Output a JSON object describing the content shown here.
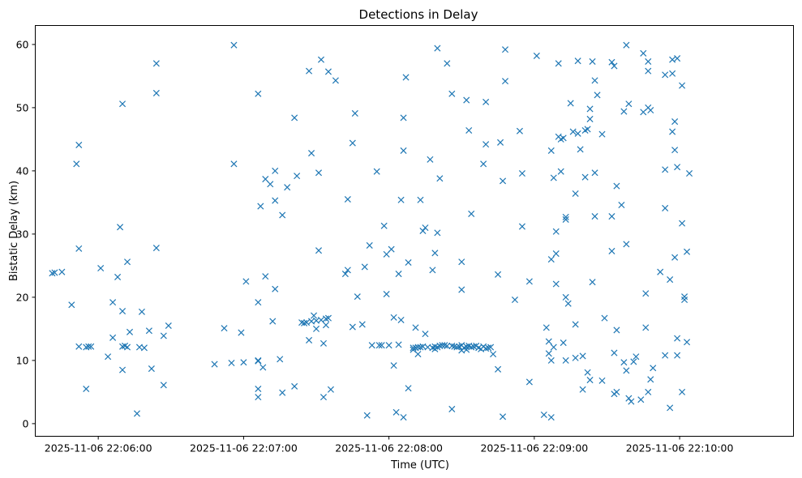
{
  "chart_data": {
    "type": "scatter",
    "title": "Detections in Delay",
    "xlabel": "Time (UTC)",
    "ylabel": "Bistatic Delay (km)",
    "marker": "x",
    "color": "#1f77b4",
    "grid": false,
    "x_unit": "time (UTC), 2025-11-06",
    "xlim": [
      "22:05:34",
      "22:10:47"
    ],
    "ylim": [
      -2,
      63
    ],
    "xticks": [
      "2025-11-06 22:06:00",
      "2025-11-06 22:07:00",
      "2025-11-06 22:08:00",
      "2025-11-06 22:09:00",
      "2025-11-06 22:10:00"
    ],
    "yticks": [
      "0",
      "10",
      "20",
      "30",
      "40",
      "50",
      "60"
    ],
    "points": [
      [
        "22:05:41",
        23.8
      ],
      [
        "22:05:42",
        23.9
      ],
      [
        "22:05:45",
        24.0
      ],
      [
        "22:05:49",
        18.8
      ],
      [
        "22:05:51",
        41.1
      ],
      [
        "22:05:52",
        44.1
      ],
      [
        "22:05:52",
        27.7
      ],
      [
        "22:05:52",
        12.2
      ],
      [
        "22:05:55",
        12.1
      ],
      [
        "22:05:55",
        5.5
      ],
      [
        "22:05:56",
        12.2
      ],
      [
        "22:05:57",
        12.2
      ],
      [
        "22:06:01",
        24.6
      ],
      [
        "22:06:04",
        10.6
      ],
      [
        "22:06:06",
        19.2
      ],
      [
        "22:06:06",
        13.6
      ],
      [
        "22:06:08",
        23.2
      ],
      [
        "22:06:09",
        31.1
      ],
      [
        "22:06:10",
        50.6
      ],
      [
        "22:06:10",
        17.8
      ],
      [
        "22:06:10",
        12.2
      ],
      [
        "22:06:10",
        8.5
      ],
      [
        "22:06:11",
        12.3
      ],
      [
        "22:06:12",
        25.6
      ],
      [
        "22:06:12",
        12.1
      ],
      [
        "22:06:13",
        14.5
      ],
      [
        "22:06:16",
        1.6
      ],
      [
        "22:06:17",
        12.1
      ],
      [
        "22:06:18",
        17.7
      ],
      [
        "22:06:19",
        12.0
      ],
      [
        "22:06:21",
        14.7
      ],
      [
        "22:06:22",
        8.7
      ],
      [
        "22:06:24",
        57.0
      ],
      [
        "22:06:24",
        52.3
      ],
      [
        "22:06:24",
        27.8
      ],
      [
        "22:06:27",
        13.9
      ],
      [
        "22:06:27",
        6.1
      ],
      [
        "22:06:29",
        15.5
      ],
      [
        "22:06:48",
        9.4
      ],
      [
        "22:06:52",
        15.1
      ],
      [
        "22:06:55",
        9.6
      ],
      [
        "22:06:56",
        59.9
      ],
      [
        "22:06:56",
        41.1
      ],
      [
        "22:06:59",
        14.4
      ],
      [
        "22:07:00",
        9.7
      ],
      [
        "22:07:01",
        22.5
      ],
      [
        "22:07:06",
        52.2
      ],
      [
        "22:07:06",
        19.2
      ],
      [
        "22:07:06",
        10.0
      ],
      [
        "22:07:06",
        9.9
      ],
      [
        "22:07:06",
        5.5
      ],
      [
        "22:07:06",
        4.2
      ],
      [
        "22:07:07",
        34.4
      ],
      [
        "22:07:08",
        8.9
      ],
      [
        "22:07:09",
        38.7
      ],
      [
        "22:07:09",
        23.3
      ],
      [
        "22:07:11",
        37.9
      ],
      [
        "22:07:12",
        16.2
      ],
      [
        "22:07:13",
        40.0
      ],
      [
        "22:07:13",
        35.3
      ],
      [
        "22:07:13",
        21.3
      ],
      [
        "22:07:15",
        10.2
      ],
      [
        "22:07:16",
        33.0
      ],
      [
        "22:07:16",
        4.9
      ],
      [
        "22:07:18",
        37.4
      ],
      [
        "22:07:21",
        48.4
      ],
      [
        "22:07:21",
        5.9
      ],
      [
        "22:07:22",
        39.2
      ],
      [
        "22:07:24",
        16.0
      ],
      [
        "22:07:25",
        15.9
      ],
      [
        "22:07:26",
        16.0
      ],
      [
        "22:07:27",
        55.8
      ],
      [
        "22:07:27",
        13.2
      ],
      [
        "22:07:28",
        42.8
      ],
      [
        "22:07:28",
        16.2
      ],
      [
        "22:07:29",
        17.1
      ],
      [
        "22:07:30",
        15.0
      ],
      [
        "22:07:30",
        16.3
      ],
      [
        "22:07:31",
        39.7
      ],
      [
        "22:07:31",
        27.4
      ],
      [
        "22:07:32",
        57.6
      ],
      [
        "22:07:32",
        16.4
      ],
      [
        "22:07:33",
        12.7
      ],
      [
        "22:07:33",
        4.2
      ],
      [
        "22:07:34",
        15.6
      ],
      [
        "22:07:34",
        16.6
      ],
      [
        "22:07:35",
        55.7
      ],
      [
        "22:07:35",
        16.7
      ],
      [
        "22:07:36",
        5.4
      ],
      [
        "22:07:38",
        54.3
      ],
      [
        "22:07:42",
        23.7
      ],
      [
        "22:07:43",
        35.5
      ],
      [
        "22:07:43",
        24.3
      ],
      [
        "22:07:45",
        44.4
      ],
      [
        "22:07:45",
        15.3
      ],
      [
        "22:07:46",
        49.1
      ],
      [
        "22:07:47",
        20.1
      ],
      [
        "22:07:49",
        15.7
      ],
      [
        "22:07:50",
        24.8
      ],
      [
        "22:07:51",
        1.3
      ],
      [
        "22:07:52",
        28.2
      ],
      [
        "22:07:53",
        12.4
      ],
      [
        "22:07:55",
        39.9
      ],
      [
        "22:07:56",
        12.4
      ],
      [
        "22:07:57",
        12.4
      ],
      [
        "22:07:58",
        31.3
      ],
      [
        "22:07:59",
        20.5
      ],
      [
        "22:07:59",
        26.8
      ],
      [
        "22:08:00",
        12.4
      ],
      [
        "22:08:01",
        27.6
      ],
      [
        "22:08:02",
        16.8
      ],
      [
        "22:08:02",
        9.2
      ],
      [
        "22:08:03",
        1.8
      ],
      [
        "22:08:04",
        23.7
      ],
      [
        "22:08:04",
        12.5
      ],
      [
        "22:08:05",
        35.4
      ],
      [
        "22:08:05",
        16.4
      ],
      [
        "22:08:06",
        48.4
      ],
      [
        "22:08:06",
        43.2
      ],
      [
        "22:08:06",
        1.0
      ],
      [
        "22:08:07",
        54.8
      ],
      [
        "22:08:08",
        25.5
      ],
      [
        "22:08:08",
        5.6
      ],
      [
        "22:08:10",
        12.0
      ],
      [
        "22:08:10",
        11.7
      ],
      [
        "22:08:11",
        15.2
      ],
      [
        "22:08:11",
        12.0
      ],
      [
        "22:08:12",
        11.0
      ],
      [
        "22:08:12",
        12.1
      ],
      [
        "22:08:13",
        35.4
      ],
      [
        "22:08:13",
        12.1
      ],
      [
        "22:08:14",
        30.5
      ],
      [
        "22:08:14",
        12.2
      ],
      [
        "22:08:15",
        31.0
      ],
      [
        "22:08:15",
        14.2
      ],
      [
        "22:08:16",
        12.1
      ],
      [
        "22:08:17",
        41.8
      ],
      [
        "22:08:18",
        12.0
      ],
      [
        "22:08:18",
        24.3
      ],
      [
        "22:08:19",
        27.0
      ],
      [
        "22:08:19",
        11.8
      ],
      [
        "22:08:19",
        12.2
      ],
      [
        "22:08:20",
        59.4
      ],
      [
        "22:08:20",
        30.2
      ],
      [
        "22:08:20",
        12.1
      ],
      [
        "22:08:21",
        38.8
      ],
      [
        "22:08:21",
        12.3
      ],
      [
        "22:08:22",
        12.4
      ],
      [
        "22:08:23",
        12.4
      ],
      [
        "22:08:24",
        57.0
      ],
      [
        "22:08:24",
        12.3
      ],
      [
        "22:08:26",
        52.2
      ],
      [
        "22:08:26",
        12.3
      ],
      [
        "22:08:26",
        2.3
      ],
      [
        "22:08:27",
        12.2
      ],
      [
        "22:08:28",
        12.1
      ],
      [
        "22:08:29",
        12.2
      ],
      [
        "22:08:30",
        25.6
      ],
      [
        "22:08:30",
        21.2
      ],
      [
        "22:08:30",
        12.4
      ],
      [
        "22:08:30",
        11.6
      ],
      [
        "22:08:31",
        12.0
      ],
      [
        "22:08:32",
        51.2
      ],
      [
        "22:08:32",
        12.2
      ],
      [
        "22:08:32",
        11.7
      ],
      [
        "22:08:33",
        46.4
      ],
      [
        "22:08:33",
        12.3
      ],
      [
        "22:08:34",
        33.2
      ],
      [
        "22:08:34",
        12.1
      ],
      [
        "22:08:35",
        12.2
      ],
      [
        "22:08:36",
        12.3
      ],
      [
        "22:08:37",
        12.0
      ],
      [
        "22:08:38",
        11.8
      ],
      [
        "22:08:39",
        41.1
      ],
      [
        "22:08:39",
        12.2
      ],
      [
        "22:08:40",
        50.9
      ],
      [
        "22:08:40",
        44.2
      ],
      [
        "22:08:40",
        11.9
      ],
      [
        "22:08:41",
        12.0
      ],
      [
        "22:08:42",
        12.1
      ],
      [
        "22:08:43",
        11.0
      ],
      [
        "22:08:45",
        23.6
      ],
      [
        "22:08:45",
        8.6
      ],
      [
        "22:08:46",
        44.5
      ],
      [
        "22:08:47",
        38.4
      ],
      [
        "22:08:47",
        1.1
      ],
      [
        "22:08:48",
        54.2
      ],
      [
        "22:08:48",
        59.2
      ],
      [
        "22:08:52",
        19.6
      ],
      [
        "22:08:54",
        46.3
      ],
      [
        "22:08:55",
        31.2
      ],
      [
        "22:08:55",
        39.6
      ],
      [
        "22:08:58",
        22.5
      ],
      [
        "22:08:58",
        6.6
      ],
      [
        "22:09:01",
        58.2
      ],
      [
        "22:09:04",
        1.4
      ],
      [
        "22:09:05",
        15.2
      ],
      [
        "22:09:06",
        13.0
      ],
      [
        "22:09:06",
        11.1
      ],
      [
        "22:09:07",
        43.2
      ],
      [
        "22:09:07",
        26.0
      ],
      [
        "22:09:07",
        10.0
      ],
      [
        "22:09:07",
        1.0
      ],
      [
        "22:09:08",
        38.9
      ],
      [
        "22:09:08",
        12.1
      ],
      [
        "22:09:09",
        30.4
      ],
      [
        "22:09:09",
        26.9
      ],
      [
        "22:09:09",
        22.1
      ],
      [
        "22:09:10",
        57.0
      ],
      [
        "22:09:10",
        45.4
      ],
      [
        "22:09:11",
        45.0
      ],
      [
        "22:09:11",
        39.9
      ],
      [
        "22:09:12",
        45.2
      ],
      [
        "22:09:12",
        12.8
      ],
      [
        "22:09:13",
        32.7
      ],
      [
        "22:09:13",
        32.3
      ],
      [
        "22:09:13",
        20.0
      ],
      [
        "22:09:13",
        10.0
      ],
      [
        "22:09:14",
        19.0
      ],
      [
        "22:09:15",
        50.7
      ],
      [
        "22:09:16",
        46.2
      ],
      [
        "22:09:17",
        36.4
      ],
      [
        "22:09:17",
        15.7
      ],
      [
        "22:09:17",
        10.4
      ],
      [
        "22:09:18",
        57.4
      ],
      [
        "22:09:18",
        45.9
      ],
      [
        "22:09:19",
        43.4
      ],
      [
        "22:09:20",
        10.7
      ],
      [
        "22:09:20",
        5.4
      ],
      [
        "22:09:21",
        39.0
      ],
      [
        "22:09:21",
        46.4
      ],
      [
        "22:09:22",
        46.6
      ],
      [
        "22:09:22",
        8.1
      ],
      [
        "22:09:23",
        49.8
      ],
      [
        "22:09:23",
        48.2
      ],
      [
        "22:09:23",
        6.9
      ],
      [
        "22:09:24",
        57.3
      ],
      [
        "22:09:24",
        22.4
      ],
      [
        "22:09:25",
        54.3
      ],
      [
        "22:09:25",
        39.7
      ],
      [
        "22:09:25",
        32.8
      ],
      [
        "22:09:26",
        52.0
      ],
      [
        "22:09:28",
        45.8
      ],
      [
        "22:09:28",
        6.8
      ],
      [
        "22:09:29",
        16.7
      ],
      [
        "22:09:32",
        57.2
      ],
      [
        "22:09:32",
        32.8
      ],
      [
        "22:09:32",
        27.3
      ],
      [
        "22:09:33",
        56.6
      ],
      [
        "22:09:33",
        11.2
      ],
      [
        "22:09:33",
        4.7
      ],
      [
        "22:09:34",
        37.6
      ],
      [
        "22:09:34",
        14.8
      ],
      [
        "22:09:34",
        5.0
      ],
      [
        "22:09:36",
        34.6
      ],
      [
        "22:09:37",
        49.4
      ],
      [
        "22:09:37",
        9.7
      ],
      [
        "22:09:38",
        59.9
      ],
      [
        "22:09:38",
        28.4
      ],
      [
        "22:09:38",
        8.4
      ],
      [
        "22:09:39",
        50.6
      ],
      [
        "22:09:39",
        4.0
      ],
      [
        "22:09:40",
        3.5
      ],
      [
        "22:09:41",
        9.8
      ],
      [
        "22:09:42",
        10.6
      ],
      [
        "22:09:44",
        3.8
      ],
      [
        "22:09:45",
        58.6
      ],
      [
        "22:09:45",
        49.3
      ],
      [
        "22:09:46",
        15.2
      ],
      [
        "22:09:46",
        20.6
      ],
      [
        "22:09:47",
        57.3
      ],
      [
        "22:09:47",
        55.8
      ],
      [
        "22:09:47",
        50.0
      ],
      [
        "22:09:47",
        5.0
      ],
      [
        "22:09:48",
        49.6
      ],
      [
        "22:09:48",
        7.0
      ],
      [
        "22:09:49",
        8.8
      ],
      [
        "22:09:52",
        24.0
      ],
      [
        "22:09:54",
        55.2
      ],
      [
        "22:09:54",
        34.1
      ],
      [
        "22:09:54",
        40.2
      ],
      [
        "22:09:54",
        10.8
      ],
      [
        "22:09:56",
        22.8
      ],
      [
        "22:09:56",
        2.5
      ],
      [
        "22:09:57",
        57.6
      ],
      [
        "22:09:57",
        46.2
      ],
      [
        "22:09:57",
        55.4
      ],
      [
        "22:09:58",
        47.8
      ],
      [
        "22:09:58",
        43.3
      ],
      [
        "22:09:58",
        26.3
      ],
      [
        "22:09:59",
        40.6
      ],
      [
        "22:09:59",
        57.8
      ],
      [
        "22:09:59",
        13.5
      ],
      [
        "22:09:59",
        10.8
      ],
      [
        "22:10:01",
        53.5
      ],
      [
        "22:10:01",
        31.7
      ],
      [
        "22:10:01",
        5.0
      ],
      [
        "22:10:02",
        20.1
      ],
      [
        "22:10:02",
        19.6
      ],
      [
        "22:10:03",
        12.9
      ],
      [
        "22:10:03",
        27.2
      ],
      [
        "22:10:04",
        39.6
      ]
    ]
  }
}
